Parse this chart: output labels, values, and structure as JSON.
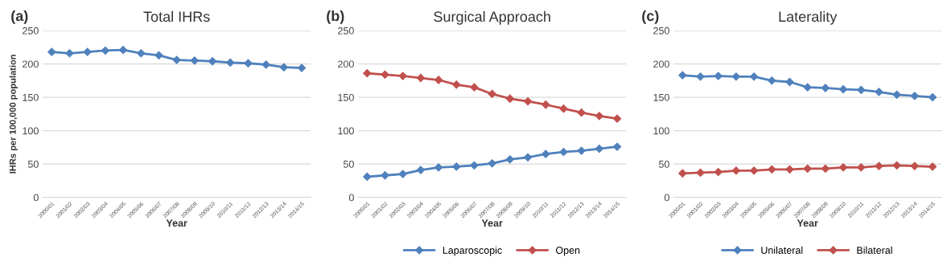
{
  "chart_data": [
    {
      "type": "line",
      "title": "Total IHRs",
      "annotations": [
        "(a)"
      ],
      "xlabel": "Year",
      "ylabel": "IHRs per 100,000 population",
      "categories": [
        "2000/01",
        "2001/02",
        "2002/03",
        "2003/04",
        "2004/05",
        "2005/06",
        "2006/07",
        "2007/08",
        "2008/09",
        "2009/10",
        "2010/11",
        "2011/12",
        "2012/13",
        "2013/14",
        "2014/15"
      ],
      "series": [
        {
          "color": "#4f81bd",
          "values": [
            218,
            216,
            218,
            220,
            221,
            216,
            213,
            206,
            205,
            204,
            202,
            201,
            199,
            195,
            194
          ]
        }
      ],
      "ylim": [
        0,
        250
      ],
      "yticks": [
        0,
        50,
        100,
        150,
        200,
        250
      ],
      "grid": "y",
      "marker": "diamond",
      "line_style": "solid"
    },
    {
      "type": "line",
      "title": "Surgical Approach",
      "annotations": [
        "(b)"
      ],
      "xlabel": "Year",
      "categories": [
        "2000/01",
        "2001/02",
        "2002/03",
        "2003/04",
        "2004/05",
        "2005/06",
        "2006/07",
        "2007/08",
        "2008/09",
        "2009/10",
        "2010/11",
        "2011/12",
        "2012/13",
        "2013/14",
        "2014/15"
      ],
      "series": [
        {
          "name": "Laparoscopic",
          "color": "#4f81bd",
          "values": [
            31,
            33,
            35,
            41,
            45,
            46,
            48,
            51,
            57,
            60,
            65,
            68,
            70,
            73,
            76
          ]
        },
        {
          "name": "Open",
          "color": "#c0504d",
          "values": [
            186,
            184,
            182,
            179,
            176,
            169,
            165,
            155,
            148,
            144,
            139,
            133,
            127,
            122,
            118
          ]
        }
      ],
      "ylim": [
        0,
        250
      ],
      "yticks": [
        0,
        50,
        100,
        150,
        200,
        250
      ],
      "grid": "y",
      "legend": "bottom",
      "marker": "diamond",
      "line_style": "solid"
    },
    {
      "type": "line",
      "title": "Laterality",
      "annotations": [
        "(c)"
      ],
      "xlabel": "Year",
      "categories": [
        "2000/01",
        "2001/02",
        "2002/03",
        "2003/04",
        "2004/05",
        "2005/06",
        "2006/07",
        "2007/08",
        "2008/09",
        "2009/10",
        "2010/11",
        "2011/12",
        "2012/13",
        "2013/14",
        "2014/15"
      ],
      "series": [
        {
          "name": "Unilateral",
          "color": "#4f81bd",
          "values": [
            183,
            181,
            182,
            181,
            181,
            175,
            173,
            165,
            164,
            162,
            161,
            158,
            154,
            152,
            150
          ]
        },
        {
          "name": "Bilateral",
          "color": "#c0504d",
          "values": [
            36,
            37,
            38,
            40,
            40,
            42,
            42,
            43,
            43,
            45,
            45,
            47,
            48,
            47,
            46
          ]
        }
      ],
      "ylim": [
        0,
        250
      ],
      "yticks": [
        0,
        50,
        100,
        150,
        200,
        250
      ],
      "grid": "y",
      "legend": "bottom",
      "marker": "diamond",
      "line_style": "solid"
    }
  ]
}
